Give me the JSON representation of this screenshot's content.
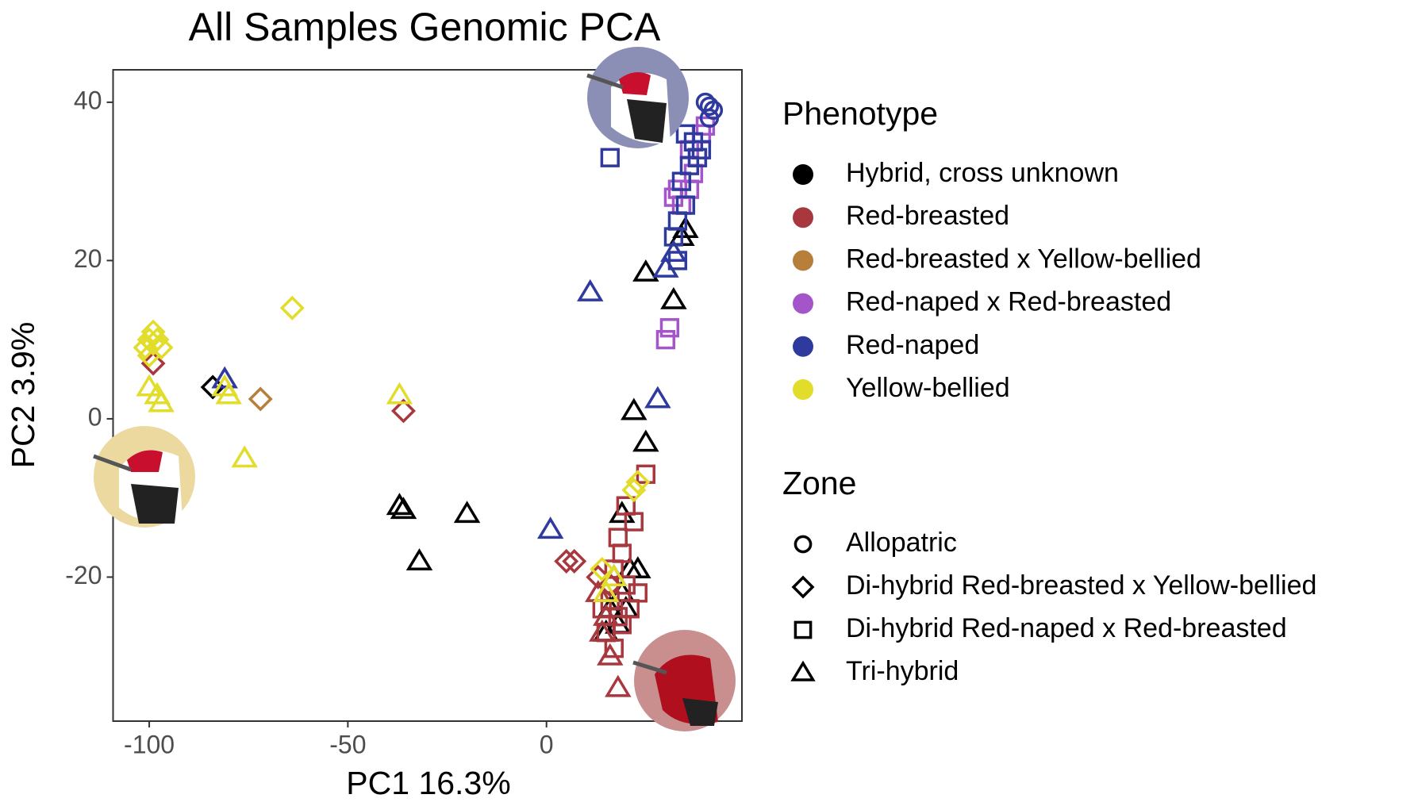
{
  "chart_data": {
    "type": "scatter",
    "title": "All Samples Genomic PCA",
    "x_label": "PC1 16.3%",
    "y_label": "PC2 3.9%",
    "xlim": [
      -109.1,
      49.2
    ],
    "ylim": [
      -38.2,
      44.1
    ],
    "xticks": [
      -100,
      -50,
      0
    ],
    "yticks": [
      40,
      20,
      0,
      -20
    ],
    "grid": false,
    "legend_position": "right",
    "color_legend_title": "Phenotype",
    "shape_legend_title": "Zone",
    "zones": [
      {
        "name": "Allopatric",
        "marker": "circle"
      },
      {
        "name": "Di-hybrid Red-breasted x Yellow-bellied",
        "marker": "diamond"
      },
      {
        "name": "Di-hybrid Red-naped x Red-breasted",
        "marker": "square"
      },
      {
        "name": "Tri-hybrid",
        "marker": "triangle"
      }
    ],
    "series": [
      {
        "name": "Hybrid, cross unknown",
        "color": "#000000",
        "groups": [
          {
            "zone": "Di-hybrid Red-breasted x Yellow-bellied",
            "x": [
              -84
            ],
            "y": [
              4
            ]
          },
          {
            "zone": "Tri-hybrid",
            "x": [
              -37,
              -36,
              -20,
              -32,
              22,
              25,
              19,
              17,
              19,
              21,
              16,
              18,
              15,
              23,
              20,
              25,
              32,
              35,
              34
            ],
            "y": [
              -11,
              -11.5,
              -12,
              -18,
              1,
              -3,
              -12,
              -20,
              -22,
              -19,
              -24,
              -26,
              -27,
              -19,
              -24,
              18.5,
              15,
              24,
              23
            ]
          }
        ]
      },
      {
        "name": "Red-breasted",
        "color": "#a8383e",
        "groups": [
          {
            "zone": "Di-hybrid Red-breasted x Yellow-bellied",
            "x": [
              -99,
              -36,
              5,
              7,
              13,
              16
            ],
            "y": [
              7,
              1,
              -18,
              -18,
              -20,
              -21
            ]
          },
          {
            "zone": "Di-hybrid Red-naped x Red-breasted",
            "x": [
              25,
              20,
              22,
              18,
              19,
              17,
              20,
              16,
              18,
              15,
              17,
              19,
              21,
              23,
              14
            ],
            "y": [
              -7,
              -11,
              -13,
              -15,
              -17,
              -19,
              -21,
              -23,
              -25,
              -27,
              -29,
              -26,
              -24,
              -22,
              -24
            ]
          },
          {
            "zone": "Tri-hybrid",
            "x": [
              13,
              15,
              18,
              14,
              16
            ],
            "y": [
              -22,
              -25,
              -34,
              -27,
              -30
            ]
          }
        ]
      },
      {
        "name": "Red-breasted x Yellow-bellied",
        "color": "#b87f3a",
        "groups": [
          {
            "zone": "Di-hybrid Red-breasted x Yellow-bellied",
            "x": [
              -72
            ],
            "y": [
              2.5
            ]
          }
        ]
      },
      {
        "name": "Red-naped x Red-breasted",
        "color": "#a355c9",
        "groups": [
          {
            "zone": "Di-hybrid Red-naped x Red-breasted",
            "x": [
              30,
              31,
              32,
              34,
              36,
              37,
              38,
              39,
              40,
              36,
              33
            ],
            "y": [
              10,
              11.5,
              28,
              27,
              29,
              31,
              33,
              36,
              37,
              34,
              29
            ]
          }
        ]
      },
      {
        "name": "Red-naped",
        "color": "#2e3a9e",
        "groups": [
          {
            "zone": "Allopatric",
            "x": [
              40,
              41,
              42,
              41
            ],
            "y": [
              40,
              39.5,
              39,
              38
            ]
          },
          {
            "zone": "Di-hybrid Red-naped x Red-breasted",
            "x": [
              16,
              33,
              32,
              33,
              35,
              34,
              36,
              38,
              37,
              39,
              35
            ],
            "y": [
              33,
              20,
              23,
              25,
              27,
              30,
              32,
              33,
              35,
              34,
              36
            ]
          },
          {
            "zone": "Tri-hybrid",
            "x": [
              -81,
              11,
              28,
              1,
              30,
              32
            ],
            "y": [
              5,
              16,
              2.5,
              -14,
              19,
              21
            ]
          }
        ]
      },
      {
        "name": "Yellow-bellied",
        "color": "#e2dc2a",
        "groups": [
          {
            "zone": "Di-hybrid Red-breasted x Yellow-bellied",
            "x": [
              -100,
              -99,
              -101,
              -98,
              -100,
              -97,
              -99,
              -64,
              22,
              23,
              14
            ],
            "y": [
              10,
              11,
              9,
              10,
              8,
              9,
              9.5,
              14,
              -9,
              -8,
              -19
            ]
          },
          {
            "zone": "Tri-hybrid",
            "x": [
              -100,
              -98,
              -97,
              -81,
              -80,
              -76,
              -37,
              17,
              15
            ],
            "y": [
              4,
              3,
              2,
              4,
              3,
              -5,
              3,
              -20,
              -22
            ]
          }
        ]
      }
    ]
  }
}
